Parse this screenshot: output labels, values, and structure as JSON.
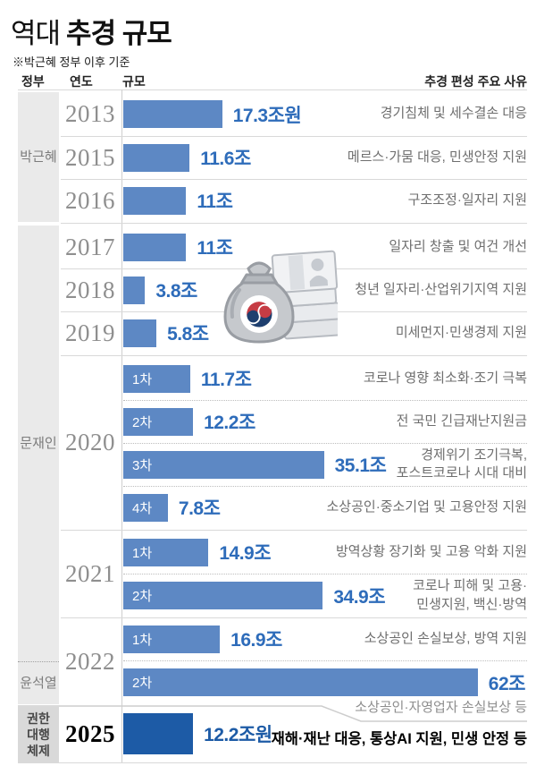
{
  "title": {
    "prefix": "역대",
    "main": "추경 규모"
  },
  "subtitle": "※박근혜 정부 이후 기준",
  "columns": {
    "government": "정부",
    "year": "연도",
    "scale": "규모",
    "reason": "추경 편성 주요 사유"
  },
  "governments": [
    {
      "name": "박근혜"
    },
    {
      "name": "문재인"
    },
    {
      "name": "윤석열"
    },
    {
      "name": "권한\n대행\n체제"
    }
  ],
  "year_groups": [
    {
      "label": "2013"
    },
    {
      "label": "2015"
    },
    {
      "label": "2016"
    },
    {
      "label": "2017"
    },
    {
      "label": "2018"
    },
    {
      "label": "2019"
    },
    {
      "label": "2020"
    },
    {
      "label": "2021"
    },
    {
      "label": "2022"
    },
    {
      "label": "2025"
    }
  ],
  "colors": {
    "bar": "#5d88c4",
    "bar_dark": "#1d5ba6",
    "value_text": "#2e6cba"
  },
  "icons": [
    "money-bag-icon",
    "banknote-stack-icon",
    "taegeuk-emblem-icon"
  ],
  "chart_data": {
    "type": "bar",
    "orientation": "horizontal",
    "title": "역대 추경 규모",
    "note": "※박근혜 정부 이후 기준",
    "unit": "조원",
    "xlim": [
      0,
      70
    ],
    "series": [
      {
        "government": "박근혜",
        "year": "2013",
        "round": "",
        "value": 17.3,
        "value_label": "17.3조원",
        "reason": "경기침체 및 세수결손 대응"
      },
      {
        "government": "박근혜",
        "year": "2015",
        "round": "",
        "value": 11.6,
        "value_label": "11.6조",
        "reason": "메르스·가뭄 대응, 민생안정 지원"
      },
      {
        "government": "박근혜",
        "year": "2016",
        "round": "",
        "value": 11,
        "value_label": "11조",
        "reason": "구조조정·일자리 지원"
      },
      {
        "government": "문재인",
        "year": "2017",
        "round": "",
        "value": 11,
        "value_label": "11조",
        "reason": "일자리 창출 및 여건 개선"
      },
      {
        "government": "문재인",
        "year": "2018",
        "round": "",
        "value": 3.8,
        "value_label": "3.8조",
        "reason": "청년 일자리·산업위기지역 지원"
      },
      {
        "government": "문재인",
        "year": "2019",
        "round": "",
        "value": 5.8,
        "value_label": "5.8조",
        "reason": "미세먼지·민생경제 지원"
      },
      {
        "government": "문재인",
        "year": "2020",
        "round": "1차",
        "value": 11.7,
        "value_label": "11.7조",
        "reason": "코로나 영향 최소화·조기 극복"
      },
      {
        "government": "문재인",
        "year": "2020",
        "round": "2차",
        "value": 12.2,
        "value_label": "12.2조",
        "reason": "전 국민 긴급재난지원금"
      },
      {
        "government": "문재인",
        "year": "2020",
        "round": "3차",
        "value": 35.1,
        "value_label": "35.1조",
        "reason": "경제위기 조기극복,\n포스트코로나 시대 대비"
      },
      {
        "government": "문재인",
        "year": "2020",
        "round": "4차",
        "value": 7.8,
        "value_label": "7.8조",
        "reason": "소상공인·중소기업 및 고용안정 지원"
      },
      {
        "government": "문재인",
        "year": "2021",
        "round": "1차",
        "value": 14.9,
        "value_label": "14.9조",
        "reason": "방역상황 장기화 및 고용 악화 지원"
      },
      {
        "government": "문재인",
        "year": "2021",
        "round": "2차",
        "value": 34.9,
        "value_label": "34.9조",
        "reason": "코로나 피해 및 고용·\n민생지원, 백신·방역"
      },
      {
        "government": "문재인",
        "year": "2022",
        "round": "1차",
        "value": 16.9,
        "value_label": "16.9조",
        "reason": "소상공인 손실보상, 방역 지원"
      },
      {
        "government": "윤석열",
        "year": "2022",
        "round": "2차",
        "value": 62,
        "value_label": "62조",
        "reason": "소상공인·자영업자 손실보상 등"
      },
      {
        "government": "권한대행체제",
        "year": "2025",
        "round": "",
        "value": 12.2,
        "value_label": "12.2조원",
        "reason": "재해·재난 대응, 통상AI 지원, 민생 안정 등"
      }
    ]
  }
}
